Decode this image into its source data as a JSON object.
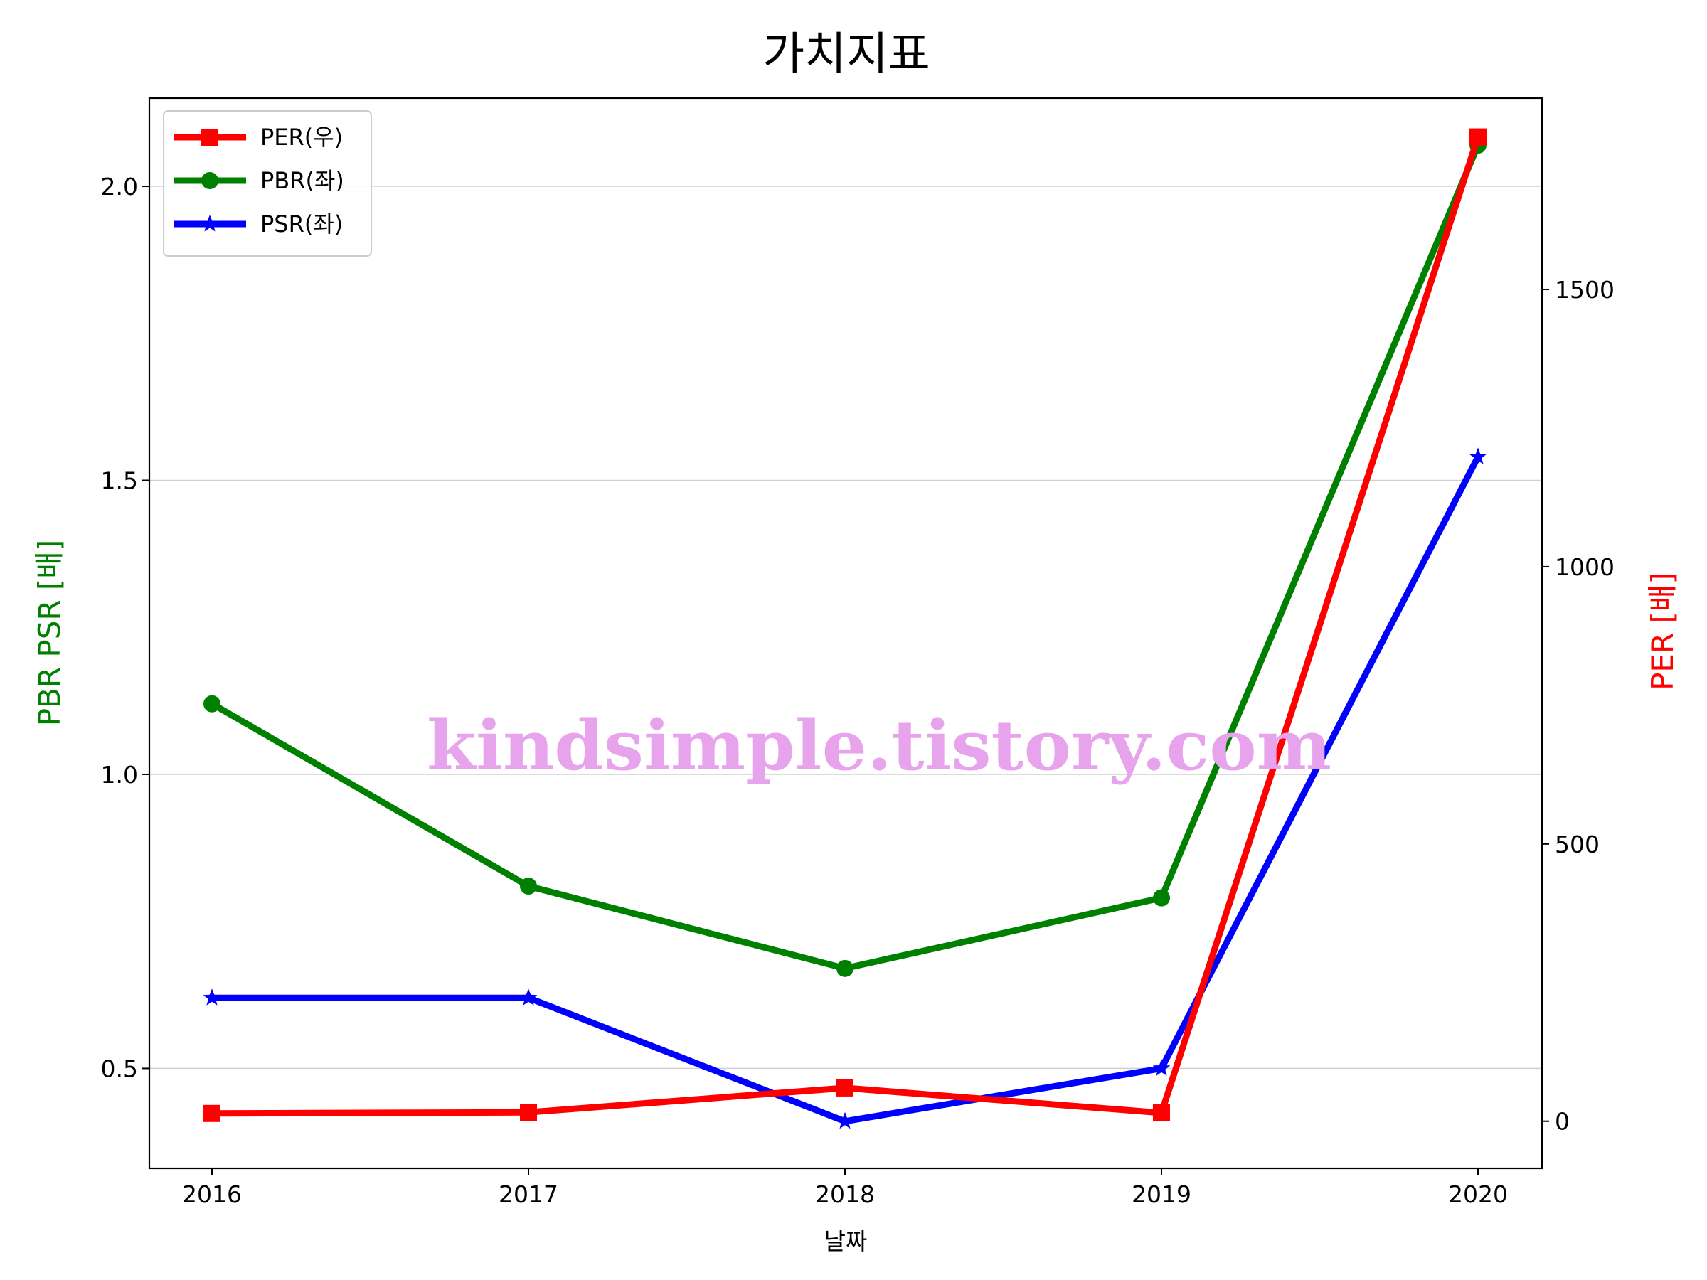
{
  "chart_data": {
    "type": "line",
    "title": "가치지표",
    "xlabel": "날짜",
    "ylabel_left": "PBR PSR [배]",
    "ylabel_right": "PER [배]",
    "categories": [
      "2016",
      "2017",
      "2018",
      "2019",
      "2020"
    ],
    "ylim_left": [
      0.33,
      2.15
    ],
    "yticks_left": [
      "0.5",
      "1.0",
      "1.5",
      "2.0"
    ],
    "ylim_right": [
      -85,
      1845
    ],
    "yticks_right": [
      "0",
      "500",
      "1000",
      "1500"
    ],
    "grid": "horizontal (left axis)",
    "legend_position": "top-left",
    "series": [
      {
        "name": "PER(우)",
        "axis": "right",
        "color": "#ff0000",
        "marker": "square",
        "values": [
          14,
          16,
          60,
          15,
          1775
        ]
      },
      {
        "name": "PBR(좌)",
        "axis": "left",
        "color": "#008000",
        "marker": "circle",
        "values": [
          1.12,
          0.81,
          0.67,
          0.79,
          2.07
        ]
      },
      {
        "name": "PSR(좌)",
        "axis": "left",
        "color": "#0000ff",
        "marker": "star",
        "values": [
          0.62,
          0.62,
          0.41,
          0.5,
          1.54
        ]
      }
    ],
    "ylabel_left_color": "#008000",
    "ylabel_right_color": "#ff0000",
    "watermark": "kindsimple.tistory.com",
    "watermark_color": "#e7a3ec"
  }
}
